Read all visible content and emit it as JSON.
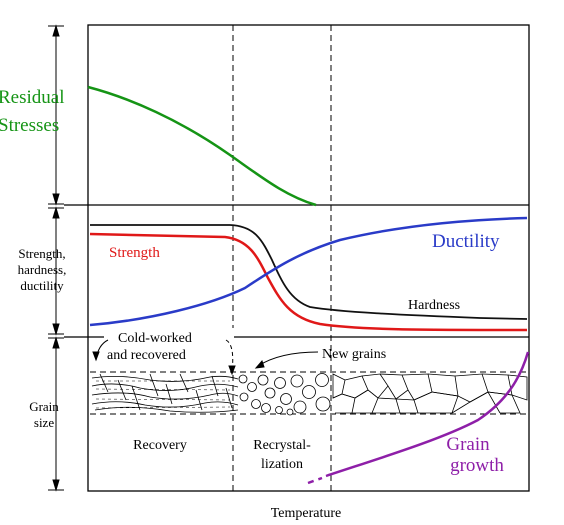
{
  "colors": {
    "residual_stress": "#159415",
    "strength": "#e01818",
    "hardness": "#111111",
    "ductility": "#2a3bc8",
    "grain_growth": "#8e1fa8",
    "frame": "#000000"
  },
  "labels": {
    "residual_line1": "Residual",
    "residual_line2": "Stresses",
    "property_line1": "Strength,",
    "property_line2": "hardness,",
    "property_line3": "ductility",
    "grain_size_line1": "Grain",
    "grain_size_line2": "size",
    "strength": "Strength",
    "ductility": "Ductility",
    "hardness": "Hardness",
    "cold_worked_line1": "Cold-worked",
    "cold_worked_line2": "and  recovered",
    "new_grains": "New grains",
    "recovery": "Recovery",
    "recrystallization_line1": "Recrystal-",
    "recrystallization_line2": "lization",
    "grain_growth_line1": "Grain",
    "grain_growth_line2": "growth",
    "x_axis": "Temperature"
  }
}
